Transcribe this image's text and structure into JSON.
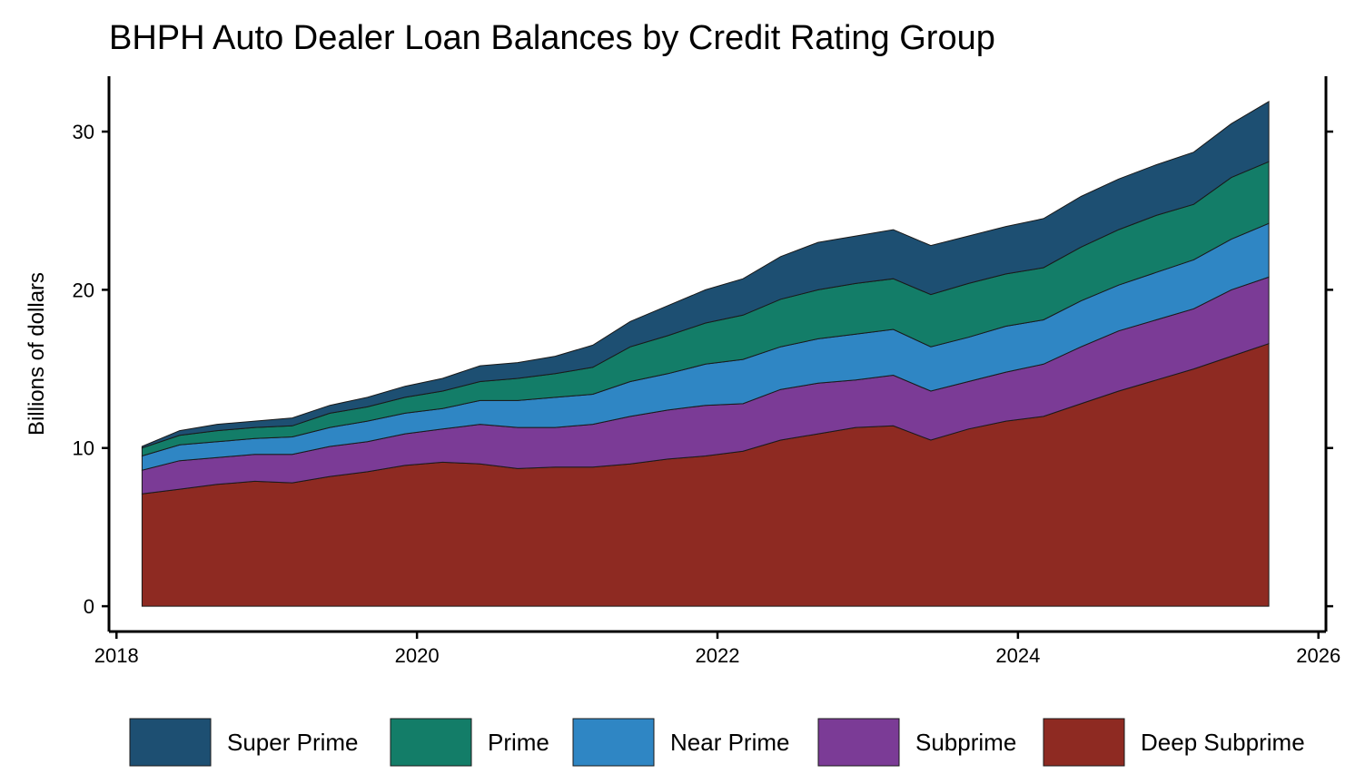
{
  "chart_data": {
    "type": "area",
    "stacked": true,
    "title": "BHPH Auto Dealer Loan Balances by Credit Rating Group",
    "ylabel": "Billions of dollars",
    "xlabel": "",
    "xlim": [
      2017.95,
      2026.05
    ],
    "ylim": [
      -1.6,
      33.5
    ],
    "xticks": [
      2018,
      2020,
      2022,
      2024,
      2026
    ],
    "yticks": [
      0,
      10,
      20,
      30
    ],
    "grid": false,
    "legend_position": "bottom",
    "x": [
      2018.17,
      2018.42,
      2018.67,
      2018.92,
      2019.17,
      2019.42,
      2019.67,
      2019.92,
      2020.17,
      2020.42,
      2020.67,
      2020.92,
      2021.17,
      2021.42,
      2021.67,
      2021.92,
      2022.17,
      2022.42,
      2022.67,
      2022.92,
      2023.17,
      2023.42,
      2023.67,
      2023.92,
      2024.17,
      2024.42,
      2024.67,
      2024.92,
      2025.17,
      2025.42,
      2025.67
    ],
    "series": [
      {
        "name": "Deep Subprime",
        "color": "#8e2a22",
        "values": [
          7.1,
          7.4,
          7.7,
          7.9,
          7.8,
          8.2,
          8.5,
          8.9,
          9.1,
          9.0,
          8.7,
          8.8,
          8.8,
          9.0,
          9.3,
          9.5,
          9.8,
          10.5,
          10.9,
          11.3,
          11.4,
          10.5,
          11.2,
          11.7,
          12.0,
          12.8,
          13.6,
          14.3,
          15.0,
          15.8,
          16.6
        ]
      },
      {
        "name": "Subprime",
        "color": "#7b3b96",
        "values": [
          1.5,
          1.8,
          1.7,
          1.7,
          1.8,
          1.9,
          1.9,
          2.0,
          2.1,
          2.5,
          2.6,
          2.5,
          2.7,
          3.0,
          3.1,
          3.2,
          3.0,
          3.2,
          3.2,
          3.0,
          3.2,
          3.1,
          3.0,
          3.1,
          3.3,
          3.6,
          3.8,
          3.8,
          3.8,
          4.2,
          4.2
        ]
      },
      {
        "name": "Near Prime",
        "color": "#2f86c4",
        "values": [
          0.9,
          1.0,
          1.0,
          1.0,
          1.1,
          1.2,
          1.3,
          1.3,
          1.3,
          1.5,
          1.7,
          1.9,
          1.9,
          2.2,
          2.3,
          2.6,
          2.8,
          2.7,
          2.8,
          2.9,
          2.9,
          2.8,
          2.8,
          2.9,
          2.8,
          2.9,
          2.9,
          3.0,
          3.1,
          3.2,
          3.4
        ]
      },
      {
        "name": "Prime",
        "color": "#137d68",
        "values": [
          0.5,
          0.6,
          0.7,
          0.7,
          0.7,
          0.9,
          0.9,
          1.0,
          1.1,
          1.2,
          1.4,
          1.5,
          1.7,
          2.2,
          2.4,
          2.6,
          2.8,
          3.0,
          3.1,
          3.2,
          3.2,
          3.3,
          3.4,
          3.3,
          3.3,
          3.4,
          3.5,
          3.6,
          3.5,
          3.9,
          3.9
        ]
      },
      {
        "name": "Super Prime",
        "color": "#1d4f72",
        "values": [
          0.1,
          0.3,
          0.4,
          0.4,
          0.5,
          0.5,
          0.6,
          0.7,
          0.8,
          1.0,
          1.0,
          1.1,
          1.4,
          1.6,
          1.9,
          2.1,
          2.3,
          2.7,
          3.0,
          3.0,
          3.1,
          3.1,
          3.0,
          3.0,
          3.1,
          3.2,
          3.2,
          3.2,
          3.3,
          3.4,
          3.8
        ]
      }
    ],
    "legend_order": [
      "Super Prime",
      "Prime",
      "Near Prime",
      "Subprime",
      "Deep Subprime"
    ]
  }
}
